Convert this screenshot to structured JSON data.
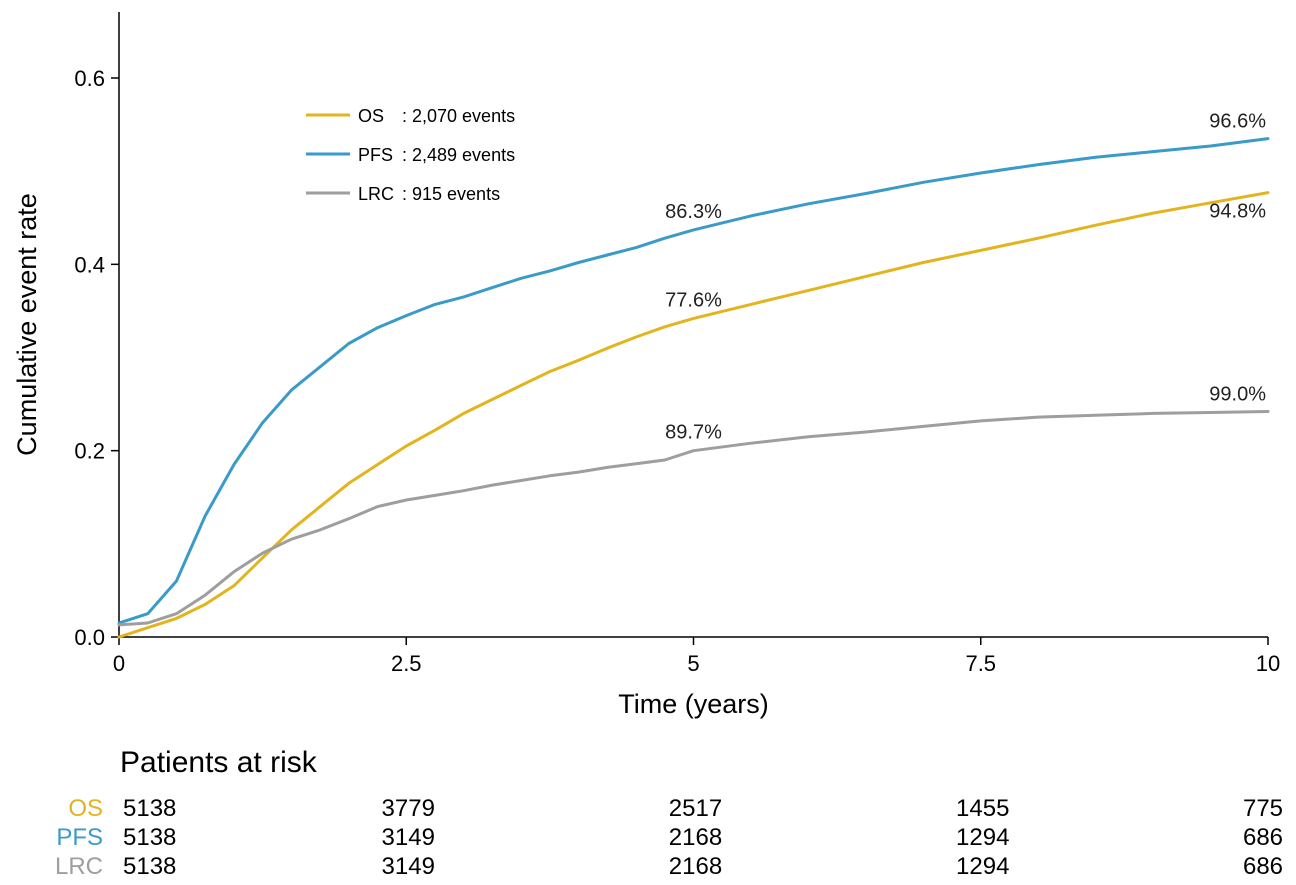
{
  "chart_data": {
    "type": "line",
    "title": "",
    "xlabel": "Time (years)",
    "ylabel": "Cumulative event rate",
    "xlim": [
      0,
      10
    ],
    "ylim": [
      0,
      0.6
    ],
    "xticks": [
      0,
      2.5,
      5,
      7.5,
      10
    ],
    "xtick_labels": [
      "0",
      "2.5",
      "5",
      "7.5",
      "10"
    ],
    "yticks": [
      0,
      0.2,
      0.4,
      0.6
    ],
    "ytick_labels": [
      "0.0",
      "0.2",
      "0.4",
      "0.6"
    ],
    "grid": false,
    "legend_position": "top-left",
    "legend": [
      {
        "name": "OS",
        "text": ": 2,070 events",
        "color": "#E2B41E"
      },
      {
        "name": "PFS",
        "text": ": 2,489 events",
        "color": "#3A9AC8"
      },
      {
        "name": "LRC",
        "text": ": 915 events",
        "color": "#9E9E9E"
      }
    ],
    "series": [
      {
        "name": "OS",
        "color": "#E2B41E",
        "x": [
          0,
          0.25,
          0.5,
          0.75,
          1,
          1.25,
          1.5,
          1.75,
          2,
          2.25,
          2.5,
          2.75,
          3,
          3.25,
          3.5,
          3.75,
          4,
          4.25,
          4.5,
          4.75,
          5,
          5.5,
          6,
          6.5,
          7,
          7.5,
          8,
          8.5,
          9,
          9.5,
          10
        ],
        "values": [
          0.0,
          0.01,
          0.02,
          0.035,
          0.055,
          0.085,
          0.115,
          0.14,
          0.165,
          0.185,
          0.205,
          0.222,
          0.24,
          0.255,
          0.27,
          0.285,
          0.297,
          0.31,
          0.322,
          0.333,
          0.342,
          0.357,
          0.372,
          0.387,
          0.402,
          0.415,
          0.428,
          0.442,
          0.455,
          0.466,
          0.477
        ]
      },
      {
        "name": "PFS",
        "color": "#3A9AC8",
        "x": [
          0,
          0.25,
          0.5,
          0.75,
          1,
          1.25,
          1.5,
          1.75,
          2,
          2.25,
          2.5,
          2.75,
          3,
          3.25,
          3.5,
          3.75,
          4,
          4.25,
          4.5,
          4.75,
          5,
          5.5,
          6,
          6.5,
          7,
          7.5,
          8,
          8.5,
          9,
          9.5,
          10
        ],
        "values": [
          0.015,
          0.025,
          0.06,
          0.13,
          0.185,
          0.23,
          0.265,
          0.29,
          0.315,
          0.332,
          0.345,
          0.357,
          0.365,
          0.375,
          0.385,
          0.393,
          0.402,
          0.41,
          0.418,
          0.428,
          0.437,
          0.452,
          0.465,
          0.476,
          0.488,
          0.498,
          0.507,
          0.515,
          0.521,
          0.527,
          0.535
        ]
      },
      {
        "name": "LRC",
        "color": "#9E9E9E",
        "x": [
          0,
          0.25,
          0.5,
          0.75,
          1,
          1.25,
          1.5,
          1.75,
          2,
          2.25,
          2.5,
          2.75,
          3,
          3.25,
          3.5,
          3.75,
          4,
          4.25,
          4.5,
          4.75,
          5,
          5.5,
          6,
          6.5,
          7,
          7.5,
          8,
          8.5,
          9,
          9.5,
          10
        ],
        "values": [
          0.013,
          0.015,
          0.025,
          0.045,
          0.07,
          0.09,
          0.105,
          0.115,
          0.127,
          0.14,
          0.147,
          0.152,
          0.157,
          0.163,
          0.168,
          0.173,
          0.177,
          0.182,
          0.186,
          0.19,
          0.2,
          0.208,
          0.215,
          0.22,
          0.226,
          0.232,
          0.236,
          0.238,
          0.24,
          0.241,
          0.242
        ]
      }
    ],
    "annotations": [
      {
        "text": "86.3%",
        "x": 5,
        "y": 0.437,
        "series": "PFS"
      },
      {
        "text": "77.6%",
        "x": 5,
        "y": 0.342,
        "series": "OS"
      },
      {
        "text": "89.7%",
        "x": 5,
        "y": 0.2,
        "series": "LRC"
      },
      {
        "text": "96.6%",
        "x": 10,
        "y": 0.535,
        "series": "PFS"
      },
      {
        "text": "94.8%",
        "x": 10,
        "y": 0.477,
        "series": "OS"
      },
      {
        "text": "99.0%",
        "x": 10,
        "y": 0.242,
        "series": "LRC"
      }
    ],
    "risk_table": {
      "title": "Patients at risk",
      "times": [
        0,
        2.5,
        5,
        7.5,
        10
      ],
      "rows": [
        {
          "name": "OS",
          "color": "#E2B41E",
          "values": [
            "5138",
            "3779",
            "2517",
            "1455",
            "775"
          ]
        },
        {
          "name": "PFS",
          "color": "#3A9AC8",
          "values": [
            "5138",
            "3149",
            "2168",
            "1294",
            "686"
          ]
        },
        {
          "name": "LRC",
          "color": "#9E9E9E",
          "values": [
            "5138",
            "3149",
            "2168",
            "1294",
            "686"
          ]
        }
      ]
    }
  }
}
